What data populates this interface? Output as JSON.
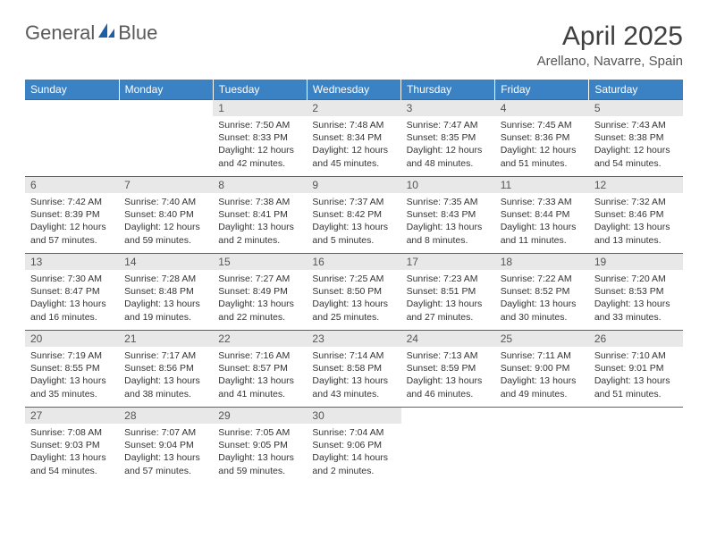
{
  "brand": {
    "part1": "General",
    "part2": "Blue"
  },
  "title": "April 2025",
  "location": "Arellano, Navarre, Spain",
  "colors": {
    "header_bg": "#3b82c4",
    "header_text": "#ffffff",
    "daynum_bg": "#e8e8e8",
    "row_border": "#2f6da8",
    "logo_accent": "#1e5fa8"
  },
  "day_headers": [
    "Sunday",
    "Monday",
    "Tuesday",
    "Wednesday",
    "Thursday",
    "Friday",
    "Saturday"
  ],
  "weeks": [
    [
      {
        "empty": true
      },
      {
        "empty": true
      },
      {
        "num": "1",
        "sunrise": "7:50 AM",
        "sunset": "8:33 PM",
        "daylight": "12 hours and 42 minutes."
      },
      {
        "num": "2",
        "sunrise": "7:48 AM",
        "sunset": "8:34 PM",
        "daylight": "12 hours and 45 minutes."
      },
      {
        "num": "3",
        "sunrise": "7:47 AM",
        "sunset": "8:35 PM",
        "daylight": "12 hours and 48 minutes."
      },
      {
        "num": "4",
        "sunrise": "7:45 AM",
        "sunset": "8:36 PM",
        "daylight": "12 hours and 51 minutes."
      },
      {
        "num": "5",
        "sunrise": "7:43 AM",
        "sunset": "8:38 PM",
        "daylight": "12 hours and 54 minutes."
      }
    ],
    [
      {
        "num": "6",
        "sunrise": "7:42 AM",
        "sunset": "8:39 PM",
        "daylight": "12 hours and 57 minutes."
      },
      {
        "num": "7",
        "sunrise": "7:40 AM",
        "sunset": "8:40 PM",
        "daylight": "12 hours and 59 minutes."
      },
      {
        "num": "8",
        "sunrise": "7:38 AM",
        "sunset": "8:41 PM",
        "daylight": "13 hours and 2 minutes."
      },
      {
        "num": "9",
        "sunrise": "7:37 AM",
        "sunset": "8:42 PM",
        "daylight": "13 hours and 5 minutes."
      },
      {
        "num": "10",
        "sunrise": "7:35 AM",
        "sunset": "8:43 PM",
        "daylight": "13 hours and 8 minutes."
      },
      {
        "num": "11",
        "sunrise": "7:33 AM",
        "sunset": "8:44 PM",
        "daylight": "13 hours and 11 minutes."
      },
      {
        "num": "12",
        "sunrise": "7:32 AM",
        "sunset": "8:46 PM",
        "daylight": "13 hours and 13 minutes."
      }
    ],
    [
      {
        "num": "13",
        "sunrise": "7:30 AM",
        "sunset": "8:47 PM",
        "daylight": "13 hours and 16 minutes."
      },
      {
        "num": "14",
        "sunrise": "7:28 AM",
        "sunset": "8:48 PM",
        "daylight": "13 hours and 19 minutes."
      },
      {
        "num": "15",
        "sunrise": "7:27 AM",
        "sunset": "8:49 PM",
        "daylight": "13 hours and 22 minutes."
      },
      {
        "num": "16",
        "sunrise": "7:25 AM",
        "sunset": "8:50 PM",
        "daylight": "13 hours and 25 minutes."
      },
      {
        "num": "17",
        "sunrise": "7:23 AM",
        "sunset": "8:51 PM",
        "daylight": "13 hours and 27 minutes."
      },
      {
        "num": "18",
        "sunrise": "7:22 AM",
        "sunset": "8:52 PM",
        "daylight": "13 hours and 30 minutes."
      },
      {
        "num": "19",
        "sunrise": "7:20 AM",
        "sunset": "8:53 PM",
        "daylight": "13 hours and 33 minutes."
      }
    ],
    [
      {
        "num": "20",
        "sunrise": "7:19 AM",
        "sunset": "8:55 PM",
        "daylight": "13 hours and 35 minutes."
      },
      {
        "num": "21",
        "sunrise": "7:17 AM",
        "sunset": "8:56 PM",
        "daylight": "13 hours and 38 minutes."
      },
      {
        "num": "22",
        "sunrise": "7:16 AM",
        "sunset": "8:57 PM",
        "daylight": "13 hours and 41 minutes."
      },
      {
        "num": "23",
        "sunrise": "7:14 AM",
        "sunset": "8:58 PM",
        "daylight": "13 hours and 43 minutes."
      },
      {
        "num": "24",
        "sunrise": "7:13 AM",
        "sunset": "8:59 PM",
        "daylight": "13 hours and 46 minutes."
      },
      {
        "num": "25",
        "sunrise": "7:11 AM",
        "sunset": "9:00 PM",
        "daylight": "13 hours and 49 minutes."
      },
      {
        "num": "26",
        "sunrise": "7:10 AM",
        "sunset": "9:01 PM",
        "daylight": "13 hours and 51 minutes."
      }
    ],
    [
      {
        "num": "27",
        "sunrise": "7:08 AM",
        "sunset": "9:03 PM",
        "daylight": "13 hours and 54 minutes."
      },
      {
        "num": "28",
        "sunrise": "7:07 AM",
        "sunset": "9:04 PM",
        "daylight": "13 hours and 57 minutes."
      },
      {
        "num": "29",
        "sunrise": "7:05 AM",
        "sunset": "9:05 PM",
        "daylight": "13 hours and 59 minutes."
      },
      {
        "num": "30",
        "sunrise": "7:04 AM",
        "sunset": "9:06 PM",
        "daylight": "14 hours and 2 minutes."
      },
      {
        "empty": true
      },
      {
        "empty": true
      },
      {
        "empty": true
      }
    ]
  ],
  "labels": {
    "sunrise": "Sunrise:",
    "sunset": "Sunset:",
    "daylight": "Daylight:"
  }
}
